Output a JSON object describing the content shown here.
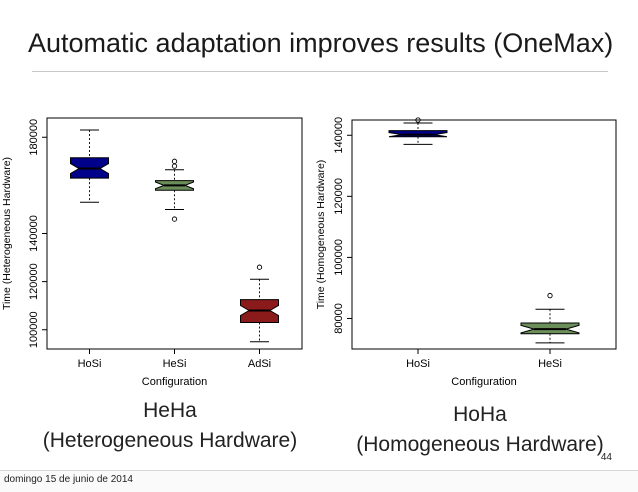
{
  "slide": {
    "title": "Automatic adaptation improves results (OneMax)",
    "page_number": "44",
    "footer_date": "domingo 15 de junio de 2014"
  },
  "captions": {
    "left_line1": "HeHa",
    "left_line2": "(Heterogeneous Hardware)",
    "right_line1": "HoHa",
    "right_line2": "(Homogeneous Hardware)"
  },
  "colors": {
    "HoSi": "#00008b",
    "HeSi": "#6b8e5a",
    "AdSi": "#8b1a1a"
  },
  "chart_data": [
    {
      "type": "box",
      "title": "",
      "xlabel": "Configuration",
      "ylabel": "Time (Heterogeneous Hardware)",
      "ylim": [
        92000,
        188000
      ],
      "yticks": [
        100000,
        120000,
        140000,
        180000
      ],
      "notched": true,
      "grid": false,
      "categories": [
        "HoSi",
        "HeSi",
        "AdSi"
      ],
      "boxes": [
        {
          "name": "HoSi",
          "whisker_low": 153000,
          "q1": 163000,
          "median": 167000,
          "q3": 171500,
          "whisker_high": 183000,
          "outliers": []
        },
        {
          "name": "HeSi",
          "whisker_low": 150000,
          "q1": 158000,
          "median": 160000,
          "q3": 162000,
          "whisker_high": 166500,
          "outliers": [
            146000,
            168000,
            170000
          ]
        },
        {
          "name": "AdSi",
          "whisker_low": 95000,
          "q1": 103000,
          "median": 108000,
          "q3": 112500,
          "whisker_high": 121000,
          "outliers": [
            126000
          ]
        }
      ]
    },
    {
      "type": "box",
      "title": "",
      "xlabel": "Configuration",
      "ylabel": "Time (Homogeneous Hardware)",
      "ylim": [
        70000,
        145000
      ],
      "yticks": [
        80000,
        100000,
        120000,
        140000
      ],
      "notched": true,
      "grid": false,
      "categories": [
        "HoSi",
        "HeSi"
      ],
      "boxes": [
        {
          "name": "HoSi",
          "whisker_low": 137000,
          "q1": 139500,
          "median": 140200,
          "q3": 141500,
          "whisker_high": 144000,
          "outliers": [
            145000
          ]
        },
        {
          "name": "HeSi",
          "whisker_low": 72000,
          "q1": 75000,
          "median": 76500,
          "q3": 78500,
          "whisker_high": 83000,
          "outliers": [
            87500
          ]
        }
      ]
    }
  ]
}
